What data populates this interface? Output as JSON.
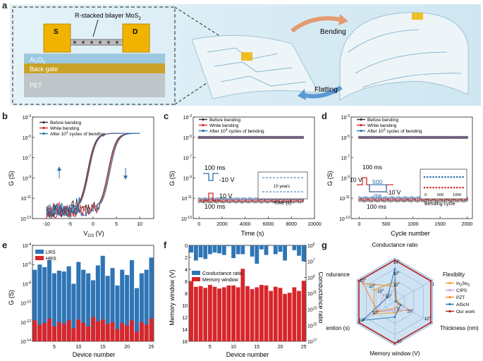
{
  "panel_labels": {
    "a": "a",
    "b": "b",
    "c": "c",
    "d": "d",
    "e": "e",
    "f": "f",
    "g": "g"
  },
  "panel_a": {
    "device_title": "R-stacked bilayer MoS",
    "device_title_sub": "2",
    "source": "S",
    "drain": "D",
    "oxide": "Al",
    "oxide_sub1": "2",
    "oxide_o": "O",
    "oxide_sub2": "3",
    "gate": "Back gate",
    "substrate": "PET",
    "bending": "Bending",
    "flatting": "Flatting",
    "colors": {
      "substrate": "#bfc6c9",
      "gate": "#c9a227",
      "oxide": "#9cc9e0",
      "electrode": "#f0b400",
      "background": "#d6ebf4"
    }
  },
  "chart_data": [
    {
      "id": "b",
      "type": "line",
      "xlabel": "V",
      "xlabel_sub": "GS",
      "xlabel_unit": " (V)",
      "ylabel": "G (S)",
      "xlim": [
        -13,
        13
      ],
      "ylim_exp": [
        -13,
        -3
      ],
      "xticks": [
        "-10",
        "-5",
        "0",
        "5",
        "10"
      ],
      "yticks": [
        "10",
        "10",
        "10",
        "10",
        "10",
        "10"
      ],
      "ytick_exps": [
        "-3",
        "-5",
        "-7",
        "-9",
        "-11",
        "-13"
      ],
      "legend": [
        {
          "name": "Before bending",
          "color": "#333333"
        },
        {
          "name": "While bending",
          "color": "#d7262b"
        },
        {
          "name": "After 10",
          "sup": "3",
          "rest": " cycles of bending",
          "color": "#2c6fa8"
        }
      ]
    },
    {
      "id": "c",
      "type": "scatter",
      "xlabel": "Time (s)",
      "ylabel": "G (S)",
      "xlim": [
        -500,
        10000
      ],
      "ylim_exp": [
        -13,
        -3
      ],
      "xticks": [
        "0",
        "2000",
        "4000",
        "6000",
        "8000",
        "10000"
      ],
      "yticks": [
        "10",
        "10",
        "10",
        "10",
        "10",
        "10"
      ],
      "ytick_exps": [
        "-3",
        "-5",
        "-7",
        "-9",
        "-11",
        "-13"
      ],
      "high_level_exp": -5,
      "low_level_exp": -11.2,
      "legend": [
        {
          "name": "Before bending",
          "color": "#333333"
        },
        {
          "name": "While bending",
          "color": "#d7262b"
        },
        {
          "name": "After 10",
          "sup": "3",
          "rest": " cycles of bending",
          "color": "#2c6fa8"
        }
      ],
      "pulse_top": "100 ms",
      "pulse_neg": "-10 V",
      "pulse_pos": "10 V",
      "pulse_bottom": "100 ms",
      "inset_label": "10 years",
      "inset_xlabel": "Time (s)"
    },
    {
      "id": "d",
      "type": "scatter",
      "xlabel": "Cycle number",
      "ylabel": "G (S)",
      "xlim": [
        -150,
        2100
      ],
      "ylim_exp": [
        -13,
        -3
      ],
      "xticks": [
        "0",
        "500",
        "1000",
        "1500",
        "2000"
      ],
      "yticks": [
        "10",
        "10",
        "10",
        "10",
        "10",
        "10"
      ],
      "ytick_exps": [
        "-3",
        "-5",
        "-7",
        "-9",
        "-11",
        "-13"
      ],
      "high_level_exp": -5,
      "low_level_exp": -11.1,
      "legend": [
        {
          "name": "Before bending",
          "color": "#333333"
        },
        {
          "name": "While bending",
          "color": "#d7262b"
        },
        {
          "name": "After 10",
          "sup": "3",
          "rest": " cycles of bending",
          "color": "#2c6fa8"
        }
      ],
      "pulse_top": "100 ms",
      "pulse_pos": "10 V",
      "pulse_mid": "500",
      "pulse_mid2": "ms",
      "pulse_neg": "-10 V",
      "pulse_bottom": "100 ms",
      "pulse_dots": "...",
      "inset_xlabel": "Bending cycle",
      "inset_ticks": [
        "0",
        "500",
        "1000"
      ]
    },
    {
      "id": "e",
      "type": "bar",
      "xlabel": "Device number",
      "ylabel": "G (S)",
      "categories": [
        1,
        2,
        3,
        4,
        5,
        6,
        7,
        8,
        9,
        10,
        11,
        12,
        13,
        14,
        15,
        16,
        17,
        18,
        19,
        20,
        21,
        22,
        23,
        24,
        25
      ],
      "xticks": [
        "5",
        "10",
        "15",
        "20",
        "25"
      ],
      "yticks": [
        "10",
        "10",
        "10",
        "10",
        "10",
        "10"
      ],
      "ytick_exps": [
        "-4",
        "-6",
        "-8",
        "-10",
        "-12",
        "-14"
      ],
      "ylim_exp": [
        -14,
        -3
      ],
      "series": [
        {
          "name": "LRS",
          "color": "#2e75b6",
          "values_exp": [
            -5.8,
            -5.2,
            -5.5,
            -4.7,
            -6.2,
            -5.9,
            -6.0,
            -5.4,
            -7.4,
            -4.9,
            -5.8,
            -6.2,
            -7.0,
            -5.3,
            -4.2,
            -6.5,
            -5.6,
            -7.6,
            -5.8,
            -6.4,
            -4.7,
            -7.9,
            -6.2,
            -5.8,
            -4.4
          ]
        },
        {
          "name": "HRS",
          "color": "#d7262b",
          "values_exp": [
            -11.6,
            -12.1,
            -11.9,
            -11.4,
            -12.3,
            -11.8,
            -12.0,
            -11.6,
            -12.5,
            -11.5,
            -11.9,
            -12.3,
            -11.2,
            -11.7,
            -11.5,
            -12.0,
            -11.8,
            -12.6,
            -11.9,
            -12.2,
            -11.6,
            -12.9,
            -11.8,
            -12.1,
            -11.4
          ]
        }
      ]
    },
    {
      "id": "f",
      "type": "bar",
      "xlabel": "Device number",
      "ylabel": "Memory window (V)",
      "ylabel_right": "Conductance ratio",
      "categories": [
        1,
        2,
        3,
        4,
        5,
        6,
        7,
        8,
        9,
        10,
        11,
        12,
        13,
        14,
        15,
        16,
        17,
        18,
        19,
        20,
        21,
        22,
        23,
        24,
        25
      ],
      "xticks": [
        "5",
        "10",
        "15",
        "20",
        "25"
      ],
      "yticks": [
        "0",
        "2",
        "4",
        "6",
        "8",
        "10",
        "12",
        "14",
        "16"
      ],
      "yticks_right": [
        "10",
        "10",
        "10",
        "10",
        "10",
        "10",
        "10"
      ],
      "yticks_right_exps": [
        "5",
        "7",
        "9",
        "11",
        "13",
        "15",
        "17"
      ],
      "ylim": [
        0,
        16
      ],
      "series": [
        {
          "name": "Conductance ratio",
          "color": "#2e75b6",
          "values_exp": [
            5.9,
            6.9,
            6.5,
            6.7,
            6.1,
            5.9,
            6.0,
            6.2,
            5.1,
            6.6,
            6.1,
            6.1,
            4.2,
            6.4,
            7.3,
            5.5,
            6.2,
            5.0,
            6.1,
            5.8,
            6.9,
            5.0,
            5.6,
            6.3,
            7.0
          ]
        },
        {
          "name": "Memory window",
          "color": "#d7262b",
          "values": [
            10.0,
            9.1,
            9.2,
            8.9,
            9.4,
            9.1,
            8.8,
            9.0,
            9.3,
            9.3,
            9.0,
            12.1,
            9.2,
            8.7,
            9.0,
            9.4,
            9.3,
            8.4,
            9.1,
            8.9,
            7.9,
            8.1,
            9.0,
            8.4,
            10.1
          ]
        }
      ]
    },
    {
      "id": "g",
      "type": "radar",
      "axes": [
        "Conductance ratio",
        "Flexiblity",
        "Thickness (nm)",
        "Memory window (V)",
        "Retention (s)",
        "Endurance"
      ],
      "axis_ticks": {
        "Conductance ratio": [
          "10",
          "10",
          "10"
        ],
        "Conductance ratio_exp": [
          "9",
          "6",
          "3"
        ],
        "Flexiblity": [
          "1"
        ],
        "Thickness (nm)": [
          "10",
          "10"
        ],
        "Thickness (nm)_exp": [
          "0",
          "1"
        ],
        "Memory window (V)": [
          "10",
          "0"
        ],
        "Retention (s)": [
          "10",
          "10"
        ],
        "Retention (s)_exp": [
          "8",
          "6"
        ],
        "Endurance": [
          "10",
          "10",
          "10",
          "10"
        ],
        "Endurance_exp": [
          "4",
          "3",
          "2",
          "1"
        ]
      },
      "legend_entries": [
        {
          "name": "In",
          "sub": "2",
          "mid": "Se",
          "sub2": "3",
          "color": "#f0a030"
        },
        {
          "name": "CIPS",
          "color": "#c9a0dc"
        },
        {
          "name": "PZT",
          "color": "#f08a30"
        },
        {
          "name": "AlScN",
          "color": "#2e75b6"
        },
        {
          "name": "Our work",
          "color": "#b32020"
        }
      ],
      "series": [
        {
          "name": "In2Se3",
          "color": "#f0a030",
          "values": [
            0.45,
            0.05,
            0.35,
            0.25,
            0.55,
            0.55
          ]
        },
        {
          "name": "CIPS",
          "color": "#c9a0dc",
          "values": [
            0.3,
            0.02,
            0.4,
            0.2,
            0.45,
            0.3
          ]
        },
        {
          "name": "PZT",
          "color": "#f08a30",
          "values": [
            0.35,
            0.02,
            0.1,
            0.15,
            0.45,
            0.85
          ]
        },
        {
          "name": "AlScN",
          "color": "#2e75b6",
          "values": [
            0.75,
            0.02,
            0.15,
            0.35,
            0.85,
            0.2
          ]
        },
        {
          "name": "Our work",
          "color": "#b32020",
          "values": [
            0.95,
            0.95,
            0.95,
            0.95,
            0.95,
            0.95
          ]
        }
      ]
    }
  ]
}
